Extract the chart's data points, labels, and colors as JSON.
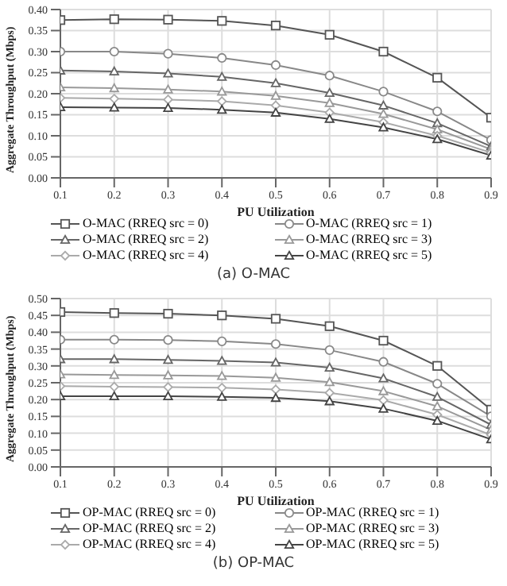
{
  "chart_data": [
    {
      "type": "line",
      "xlabel": "PU Utilization",
      "ylabel": "Aggregate Throughput (Mbps)",
      "annotations": [
        "(a) O-MAC"
      ],
      "x": [
        0.1,
        0.2,
        0.3,
        0.4,
        0.5,
        0.6,
        0.7,
        0.8,
        0.9
      ],
      "xlim": [
        0.1,
        0.9
      ],
      "xticks": [
        0.1,
        0.2,
        0.3,
        0.4,
        0.5,
        0.6,
        0.7,
        0.8,
        0.9
      ],
      "ylim": [
        0,
        0.4
      ],
      "yticks": [
        {
          "value": 0,
          "label": "0.00"
        },
        0.05,
        {
          "value": 0.1,
          "label": "0.10"
        },
        0.15,
        {
          "value": 0.2,
          "label": "0.20"
        },
        0.25,
        {
          "value": 0.3,
          "label": "0.30"
        },
        0.35,
        {
          "value": 0.4,
          "label": "0.40"
        }
      ],
      "grid": true,
      "legend": "bottom",
      "line_style": "solid",
      "series": [
        {
          "name": "O-MAC (RREQ src = 0)",
          "color": "#555555",
          "marker": "square",
          "values": [
            0.375,
            0.377,
            0.376,
            0.373,
            0.362,
            0.34,
            0.3,
            0.238,
            0.143
          ]
        },
        {
          "name": "O-MAC (RREQ src = 1)",
          "color": "#888888",
          "marker": "circle",
          "values": [
            0.3,
            0.3,
            0.295,
            0.285,
            0.268,
            0.243,
            0.205,
            0.158,
            0.09
          ]
        },
        {
          "name": "O-MAC (RREQ src = 2)",
          "color": "#666666",
          "marker": "triangle",
          "values": [
            0.255,
            0.253,
            0.248,
            0.24,
            0.225,
            0.202,
            0.172,
            0.13,
            0.075
          ]
        },
        {
          "name": "O-MAC (RREQ src = 3)",
          "color": "#999999",
          "marker": "triangle",
          "values": [
            0.215,
            0.213,
            0.21,
            0.205,
            0.195,
            0.178,
            0.152,
            0.115,
            0.068
          ]
        },
        {
          "name": "O-MAC (RREQ src = 4)",
          "color": "#aaaaaa",
          "marker": "diamond",
          "values": [
            0.19,
            0.188,
            0.186,
            0.182,
            0.172,
            0.155,
            0.132,
            0.1,
            0.06
          ]
        },
        {
          "name": "O-MAC (RREQ src = 5)",
          "color": "#444444",
          "marker": "triangle",
          "values": [
            0.168,
            0.167,
            0.166,
            0.162,
            0.155,
            0.14,
            0.12,
            0.092,
            0.053
          ]
        }
      ]
    },
    {
      "type": "line",
      "xlabel": "PU Utilization",
      "ylabel": "Aggregate Throughput (Mbps)",
      "annotations": [
        "(b) OP-MAC"
      ],
      "x": [
        0.1,
        0.2,
        0.3,
        0.4,
        0.5,
        0.6,
        0.7,
        0.8,
        0.9
      ],
      "xlim": [
        0.1,
        0.9
      ],
      "xticks": [
        0.1,
        0.2,
        0.3,
        0.4,
        0.5,
        0.6,
        0.7,
        0.8,
        0.9
      ],
      "ylim": [
        0,
        0.5
      ],
      "yticks": [
        {
          "value": 0,
          "label": "0.00"
        },
        0.05,
        {
          "value": 0.1,
          "label": "0.10"
        },
        0.15,
        {
          "value": 0.2,
          "label": "0.20"
        },
        0.25,
        {
          "value": 0.3,
          "label": "0.30"
        },
        0.35,
        {
          "value": 0.4,
          "label": "0.40"
        },
        0.45,
        {
          "value": 0.5,
          "label": "0.50"
        }
      ],
      "grid": true,
      "legend": "bottom",
      "line_style": "solid",
      "series": [
        {
          "name": "OP-MAC (RREQ src = 0)",
          "color": "#555555",
          "marker": "square",
          "values": [
            0.46,
            0.457,
            0.455,
            0.45,
            0.44,
            0.418,
            0.375,
            0.3,
            0.17
          ]
        },
        {
          "name": "OP-MAC (RREQ src = 1)",
          "color": "#888888",
          "marker": "circle",
          "values": [
            0.378,
            0.378,
            0.377,
            0.373,
            0.365,
            0.347,
            0.312,
            0.247,
            0.15
          ]
        },
        {
          "name": "OP-MAC (RREQ src = 2)",
          "color": "#666666",
          "marker": "triangle",
          "values": [
            0.32,
            0.32,
            0.318,
            0.315,
            0.31,
            0.295,
            0.263,
            0.208,
            0.125
          ]
        },
        {
          "name": "OP-MAC (RREQ src = 3)",
          "color": "#999999",
          "marker": "triangle",
          "values": [
            0.275,
            0.273,
            0.272,
            0.27,
            0.265,
            0.252,
            0.225,
            0.18,
            0.11
          ]
        },
        {
          "name": "OP-MAC (RREQ src = 4)",
          "color": "#aaaaaa",
          "marker": "diamond",
          "values": [
            0.24,
            0.238,
            0.237,
            0.235,
            0.23,
            0.22,
            0.198,
            0.155,
            0.095
          ]
        },
        {
          "name": "OP-MAC (RREQ src = 5)",
          "color": "#444444",
          "marker": "triangle",
          "values": [
            0.21,
            0.21,
            0.21,
            0.208,
            0.205,
            0.195,
            0.173,
            0.137,
            0.082
          ]
        }
      ]
    }
  ]
}
